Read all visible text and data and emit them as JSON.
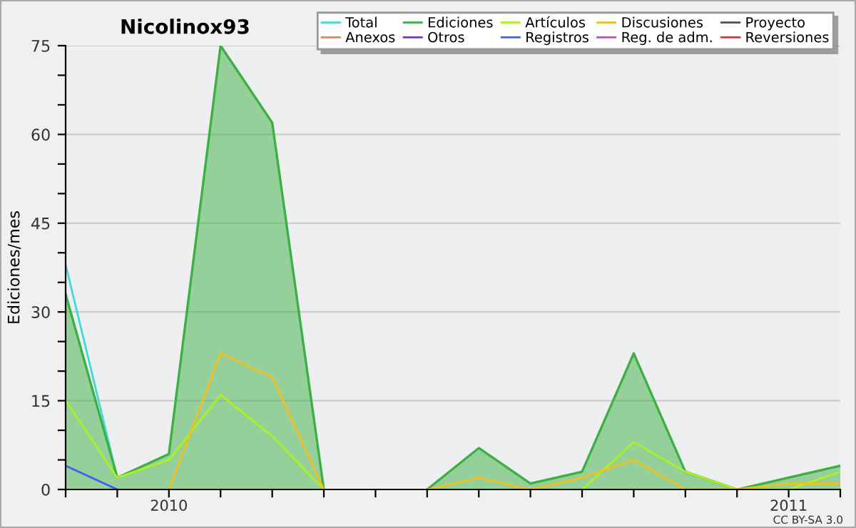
{
  "chart_data": {
    "type": "line",
    "title": "Nicolinox93",
    "ylabel": "Ediciones/mes",
    "categories": [
      null,
      null,
      "2010",
      null,
      null,
      null,
      null,
      null,
      null,
      null,
      null,
      null,
      null,
      null,
      "2011",
      null
    ],
    "ylim": [
      0,
      75
    ],
    "yticks": [
      0,
      {
        "value": 5,
        "label": null
      },
      {
        "value": 10,
        "label": null
      },
      15,
      {
        "value": 20,
        "label": null
      },
      {
        "value": 25,
        "label": null
      },
      30,
      {
        "value": 35,
        "label": null
      },
      {
        "value": 40,
        "label": null
      },
      45,
      {
        "value": 50,
        "label": null
      },
      {
        "value": 55,
        "label": null
      },
      60,
      {
        "value": 65,
        "label": null
      },
      {
        "value": 70,
        "label": null
      },
      75
    ],
    "grid": "y",
    "legend": "top right",
    "annotations": [
      "CC BY-SA 3.0"
    ],
    "series": [
      {
        "name": "Total",
        "color": "#40d8d8",
        "values": [
          38,
          2,
          null,
          null,
          null,
          null,
          null,
          null,
          null,
          null,
          null,
          null,
          null,
          null,
          null,
          null
        ]
      },
      {
        "name": "Ediciones",
        "type": "area",
        "color": "#3cb043",
        "values": [
          33,
          2,
          6,
          75,
          62,
          0,
          null,
          0,
          7,
          1,
          3,
          23,
          3,
          0,
          2,
          4
        ]
      },
      {
        "name": "Artículos",
        "color": "#b0f020",
        "values": [
          15,
          2,
          5,
          16,
          9,
          0,
          null,
          null,
          null,
          null,
          0,
          8,
          3,
          0,
          0,
          3
        ]
      },
      {
        "name": "Discusiones",
        "color": "#f0c020",
        "values": [
          null,
          null,
          0,
          23,
          19,
          0,
          null,
          0,
          2,
          0,
          2,
          5,
          0,
          0,
          1,
          1
        ]
      },
      {
        "name": "Proyecto",
        "color": "#505050",
        "values": [
          null,
          null,
          null,
          null,
          null,
          null,
          null,
          null,
          null,
          null,
          null,
          null,
          null,
          null,
          null,
          null
        ]
      },
      {
        "name": "Anexos",
        "color": "#f08040",
        "values": [
          null,
          null,
          null,
          null,
          null,
          null,
          null,
          null,
          null,
          null,
          null,
          null,
          null,
          null,
          null,
          null
        ]
      },
      {
        "name": "Otros",
        "color": "#8030d0",
        "values": [
          null,
          null,
          null,
          null,
          null,
          null,
          null,
          null,
          null,
          null,
          null,
          null,
          null,
          null,
          null,
          null
        ]
      },
      {
        "name": "Registros",
        "color": "#4060f0",
        "values": [
          4,
          0,
          null,
          null,
          null,
          null,
          null,
          null,
          null,
          null,
          null,
          null,
          null,
          null,
          null,
          null
        ]
      },
      {
        "name": "Reg. de adm.",
        "color": "#d040d0",
        "values": [
          null,
          null,
          null,
          null,
          null,
          null,
          null,
          null,
          null,
          null,
          null,
          null,
          null,
          null,
          null,
          null
        ]
      },
      {
        "name": "Reversiones",
        "color": "#e03030",
        "values": [
          null,
          null,
          null,
          null,
          null,
          null,
          null,
          null,
          null,
          null,
          null,
          null,
          null,
          null,
          null,
          null
        ]
      }
    ]
  }
}
